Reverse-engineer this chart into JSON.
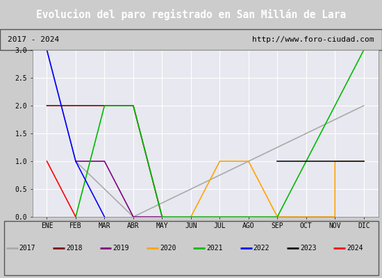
{
  "title": "Evolucion del paro registrado en San Millán de Lara",
  "subtitle_left": "2017 - 2024",
  "subtitle_right": "http://www.foro-ciudad.com",
  "x_labels": [
    "ENE",
    "FEB",
    "MAR",
    "ABR",
    "MAY",
    "JUN",
    "JUL",
    "AGO",
    "SEP",
    "OCT",
    "NOV",
    "DIC"
  ],
  "ylim": [
    0,
    3.0
  ],
  "yticks": [
    0.0,
    0.5,
    1.0,
    1.5,
    2.0,
    2.5,
    3.0
  ],
  "series": {
    "2017": {
      "color": "#aaaaaa",
      "data": [
        [
          0,
          3
        ],
        [
          1,
          1
        ],
        [
          2,
          0.5
        ],
        [
          3,
          0
        ],
        [
          11,
          2
        ]
      ]
    },
    "2018": {
      "color": "#800000",
      "data": [
        [
          0,
          2
        ],
        [
          1,
          2
        ],
        [
          2,
          2
        ],
        [
          3,
          2
        ],
        [
          4,
          0
        ]
      ]
    },
    "2019": {
      "color": "#800080",
      "data": [
        [
          1,
          1
        ],
        [
          2,
          1
        ],
        [
          3,
          0
        ],
        [
          4,
          0
        ]
      ]
    },
    "2020": {
      "color": "#ffa500",
      "data": [
        [
          5,
          0
        ],
        [
          6,
          1
        ],
        [
          7,
          1
        ],
        [
          8,
          0
        ],
        [
          10,
          0
        ],
        [
          10,
          1
        ],
        [
          11,
          1
        ]
      ]
    },
    "2021": {
      "color": "#00bb00",
      "data": [
        [
          1,
          0
        ],
        [
          2,
          2
        ],
        [
          3,
          2
        ],
        [
          4,
          0
        ],
        [
          8,
          0
        ],
        [
          9,
          1
        ],
        [
          10,
          2
        ],
        [
          11,
          3
        ]
      ]
    },
    "2022": {
      "color": "#0000ff",
      "data": [
        [
          0,
          3
        ],
        [
          1,
          1
        ],
        [
          2,
          0
        ]
      ]
    },
    "2023": {
      "color": "#111111",
      "data": [
        [
          8,
          1
        ],
        [
          9,
          1
        ],
        [
          10,
          1
        ],
        [
          11,
          1
        ]
      ]
    },
    "2024": {
      "color": "#ff0000",
      "data": [
        [
          0,
          1
        ],
        [
          1,
          0
        ]
      ]
    }
  },
  "background_color": "#cccccc",
  "plot_bg_color": "#e8e8f0",
  "title_bg_color": "#3a6bbd",
  "title_color": "#ffffff",
  "subtitle_bg_color": "#c8c8c8",
  "legend_years": [
    "2017",
    "2018",
    "2019",
    "2020",
    "2021",
    "2022",
    "2023",
    "2024"
  ],
  "legend_colors": [
    "#aaaaaa",
    "#800000",
    "#800080",
    "#ffa500",
    "#00bb00",
    "#0000ff",
    "#111111",
    "#ff0000"
  ]
}
